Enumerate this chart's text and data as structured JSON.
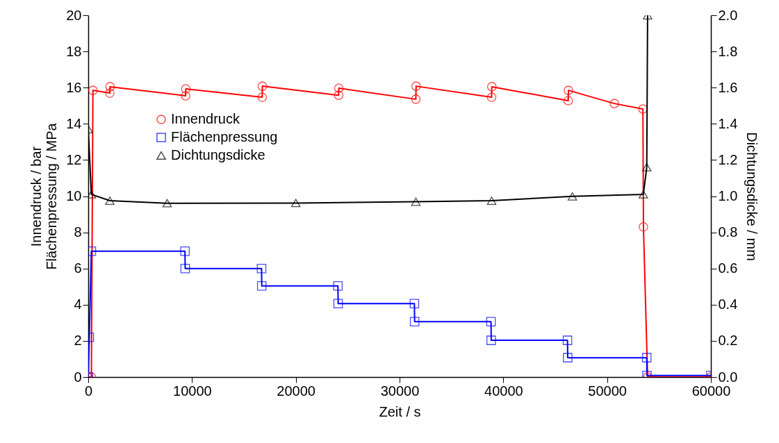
{
  "chart_data": {
    "type": "line",
    "xlabel": "Zeit / s",
    "ylabel": "Innendruck / bar\nFlächenpressung / MPa",
    "y2label": "Dichtungsdicke / mm",
    "xlim": [
      0,
      60000
    ],
    "xticks": [
      0,
      10000,
      20000,
      30000,
      40000,
      50000,
      60000
    ],
    "ylim": [
      0,
      20
    ],
    "yticks": [
      0,
      2,
      4,
      6,
      8,
      10,
      12,
      14,
      16,
      18,
      20
    ],
    "y2lim": [
      0,
      2
    ],
    "y2ticks": [
      {
        "value": 0,
        "label": "0.0"
      },
      {
        "value": 0.2,
        "label": "0.2"
      },
      {
        "value": 0.4,
        "label": "0.4"
      },
      {
        "value": 0.6,
        "label": "0.6"
      },
      {
        "value": 0.8,
        "label": "0.8"
      },
      {
        "value": 1,
        "label": "1.0"
      },
      {
        "value": 1.2,
        "label": "1.2"
      },
      {
        "value": 1.4,
        "label": "1.4"
      },
      {
        "value": 1.6,
        "label": "1.6"
      },
      {
        "value": 1.8,
        "label": "1.8"
      },
      {
        "value": 2,
        "label": "2.0"
      }
    ],
    "grid": false,
    "legend": "top left",
    "line_style": "solid",
    "series": [
      {
        "name": "Innendruck",
        "color": "#ff0000",
        "marker": "circle",
        "x": [
          0,
          300,
          450,
          2080,
          2100,
          9380,
          9400,
          16760,
          16780,
          24130,
          24150,
          31570,
          31590,
          38870,
          38890,
          46250,
          46270,
          50700,
          53450,
          53500,
          53900,
          60000
        ],
        "values": [
          0,
          0,
          15.85,
          15.7,
          16.05,
          15.55,
          15.93,
          15.47,
          16.08,
          15.58,
          15.97,
          15.36,
          16.08,
          15.47,
          16.05,
          15.28,
          15.85,
          15.12,
          14.82,
          8.3,
          0,
          0
        ]
      },
      {
        "name": "Flächenpressung",
        "color": "#0000ff",
        "marker": "square",
        "x": [
          0,
          100,
          300,
          9320,
          9340,
          16700,
          16720,
          24060,
          24080,
          31430,
          31450,
          38810,
          38830,
          46180,
          46200,
          53820,
          53840,
          60000
        ],
        "values": [
          0,
          2.2,
          6.96,
          6.96,
          6.0,
          6.0,
          5.04,
          5.04,
          4.06,
          4.06,
          3.06,
          3.06,
          2.03,
          2.03,
          1.07,
          1.07,
          0.09,
          0.09
        ]
      },
      {
        "name": "Dichtungsdicke",
        "color": "#000000",
        "marker": "triangle",
        "axis": "y2",
        "x": [
          0,
          300,
          2080,
          7600,
          20000,
          31570,
          38870,
          46650,
          53490,
          53820,
          53900
        ],
        "values": [
          1.37,
          1.01,
          0.975,
          0.961,
          0.962,
          0.969,
          0.975,
          0.999,
          1.01,
          1.16,
          2.0
        ]
      }
    ]
  }
}
